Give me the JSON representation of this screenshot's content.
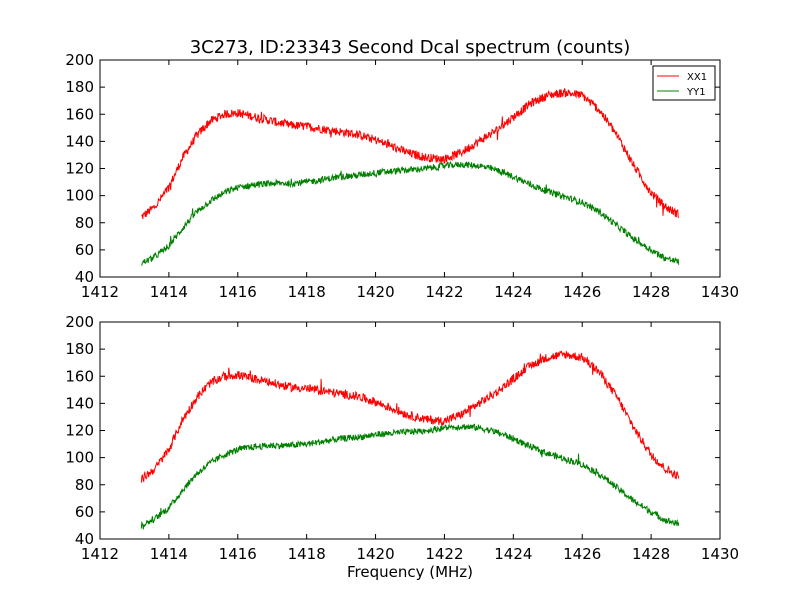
{
  "figure": {
    "title": "3C273, ID:23343 Second Dcal spectrum (counts)",
    "xlabel": "Frequency (MHz)"
  },
  "chart_data": [
    {
      "type": "line",
      "title": "3C273, ID:23343 Second Dcal spectrum (counts)",
      "xlabel": "",
      "ylabel": "",
      "xlim": [
        1412,
        1430
      ],
      "ylim": [
        40,
        200
      ],
      "xticks": [
        1412,
        1414,
        1416,
        1418,
        1420,
        1422,
        1424,
        1426,
        1428,
        1430
      ],
      "yticks": [
        40,
        60,
        80,
        100,
        120,
        140,
        160,
        180,
        200
      ],
      "grid": false,
      "legend": {
        "position": "top-right",
        "entries": [
          "XX1",
          "YY1"
        ]
      },
      "series": [
        {
          "name": "XX1",
          "color": "#ff0000",
          "x": [
            1413.2,
            1413.6,
            1414.0,
            1414.4,
            1414.8,
            1415.2,
            1415.6,
            1416.0,
            1416.5,
            1417.0,
            1417.5,
            1418.0,
            1418.5,
            1419.0,
            1419.5,
            1420.0,
            1420.5,
            1421.0,
            1421.5,
            1422.0,
            1422.5,
            1423.0,
            1423.5,
            1424.0,
            1424.5,
            1425.0,
            1425.5,
            1426.0,
            1426.5,
            1427.0,
            1427.5,
            1428.0,
            1428.4,
            1428.8
          ],
          "y": [
            84,
            92,
            106,
            128,
            144,
            155,
            160,
            161,
            158,
            155,
            152,
            151,
            149,
            147,
            145,
            141,
            136,
            131,
            128,
            127,
            132,
            140,
            148,
            158,
            168,
            174,
            176,
            174,
            163,
            145,
            122,
            102,
            92,
            86
          ]
        },
        {
          "name": "YY1",
          "color": "#008000",
          "x": [
            1413.2,
            1413.6,
            1414.0,
            1414.4,
            1414.8,
            1415.2,
            1415.6,
            1416.0,
            1416.5,
            1417.0,
            1417.5,
            1418.0,
            1418.5,
            1419.0,
            1419.5,
            1420.0,
            1420.5,
            1421.0,
            1421.5,
            1422.0,
            1422.5,
            1423.0,
            1423.5,
            1424.0,
            1424.5,
            1425.0,
            1425.5,
            1426.0,
            1426.5,
            1427.0,
            1427.5,
            1428.0,
            1428.4,
            1428.8
          ],
          "y": [
            50,
            55,
            63,
            76,
            88,
            96,
            102,
            106,
            108,
            109,
            109,
            110,
            112,
            114,
            115,
            117,
            118,
            119,
            120,
            122,
            123,
            122,
            119,
            114,
            108,
            103,
            99,
            95,
            88,
            78,
            68,
            60,
            54,
            51
          ]
        }
      ]
    },
    {
      "type": "line",
      "title": "",
      "xlabel": "Frequency (MHz)",
      "ylabel": "",
      "xlim": [
        1412,
        1430
      ],
      "ylim": [
        40,
        200
      ],
      "xticks": [
        1412,
        1414,
        1416,
        1418,
        1420,
        1422,
        1424,
        1426,
        1428,
        1430
      ],
      "yticks": [
        40,
        60,
        80,
        100,
        120,
        140,
        160,
        180,
        200
      ],
      "grid": false,
      "series": [
        {
          "color": "#ff0000",
          "x": [
            1413.2,
            1413.6,
            1414.0,
            1414.4,
            1414.8,
            1415.2,
            1415.6,
            1416.0,
            1416.5,
            1417.0,
            1417.5,
            1418.0,
            1418.5,
            1419.0,
            1419.5,
            1420.0,
            1420.5,
            1421.0,
            1421.5,
            1422.0,
            1422.5,
            1423.0,
            1423.5,
            1424.0,
            1424.5,
            1425.0,
            1425.5,
            1426.0,
            1426.5,
            1427.0,
            1427.5,
            1428.0,
            1428.4,
            1428.8
          ],
          "y": [
            84,
            92,
            106,
            128,
            144,
            155,
            160,
            161,
            158,
            155,
            152,
            151,
            149,
            147,
            145,
            141,
            136,
            131,
            128,
            127,
            132,
            140,
            148,
            158,
            168,
            174,
            176,
            174,
            163,
            145,
            122,
            102,
            92,
            86
          ]
        },
        {
          "color": "#008000",
          "x": [
            1413.2,
            1413.6,
            1414.0,
            1414.4,
            1414.8,
            1415.2,
            1415.6,
            1416.0,
            1416.5,
            1417.0,
            1417.5,
            1418.0,
            1418.5,
            1419.0,
            1419.5,
            1420.0,
            1420.5,
            1421.0,
            1421.5,
            1422.0,
            1422.5,
            1423.0,
            1423.5,
            1424.0,
            1424.5,
            1425.0,
            1425.5,
            1426.0,
            1426.5,
            1427.0,
            1427.5,
            1428.0,
            1428.4,
            1428.8
          ],
          "y": [
            50,
            55,
            63,
            76,
            88,
            96,
            102,
            106,
            108,
            109,
            109,
            110,
            112,
            114,
            115,
            117,
            118,
            119,
            120,
            122,
            123,
            122,
            119,
            114,
            108,
            103,
            99,
            95,
            88,
            78,
            68,
            60,
            54,
            51
          ]
        }
      ]
    }
  ]
}
